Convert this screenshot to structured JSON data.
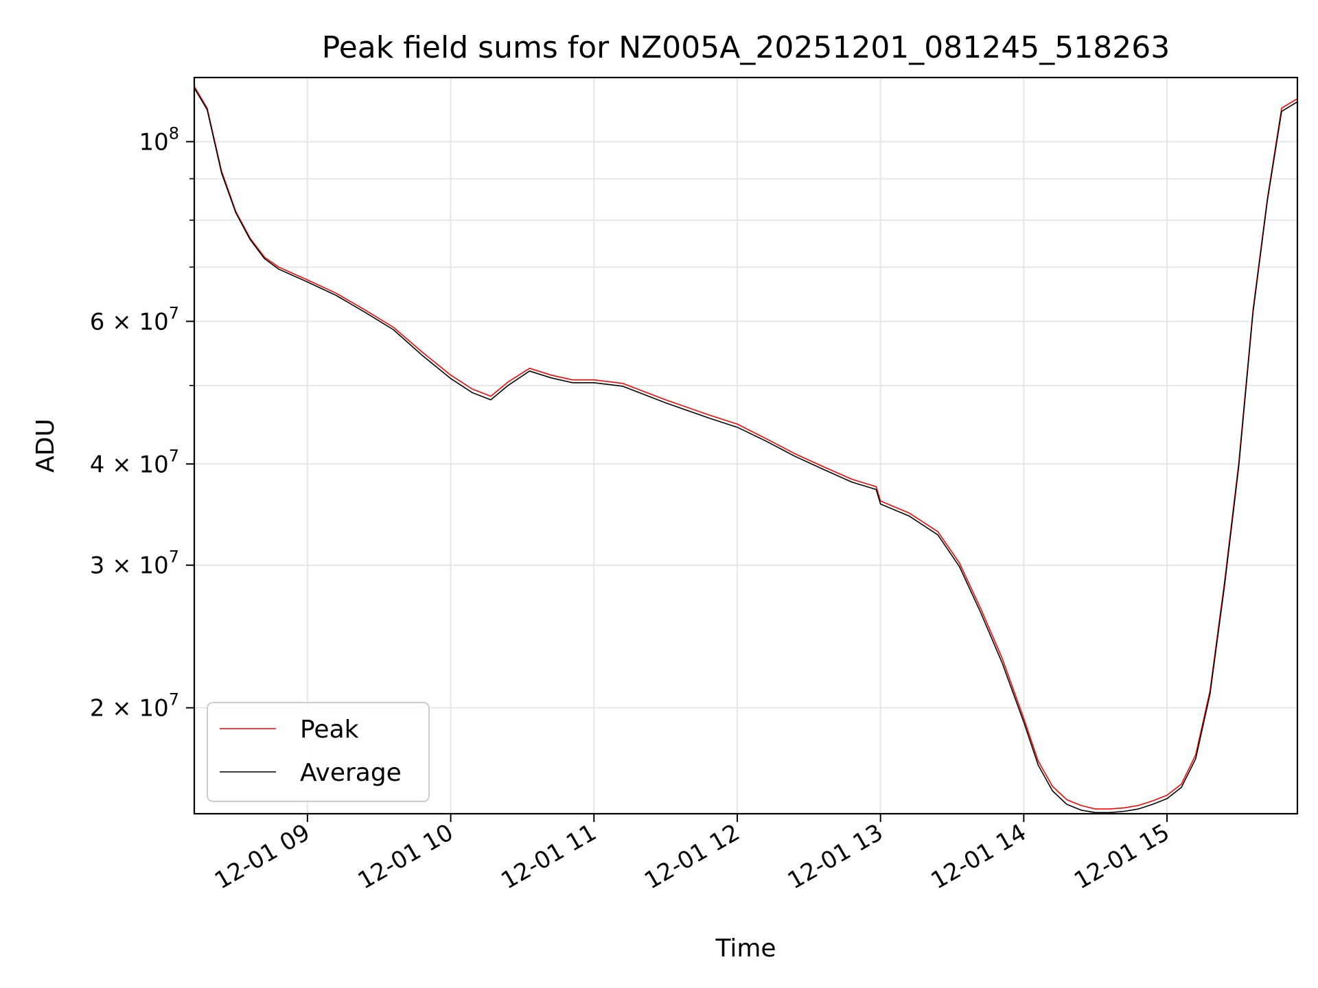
{
  "chart_data": {
    "type": "line",
    "title": "Peak field sums for NZ005A_20251201_081245_518263",
    "xlabel": "Time",
    "ylabel": "ADU",
    "yscale": "log",
    "xlim": [
      8.21,
      15.91
    ],
    "ylim": [
      14800000,
      120000000
    ],
    "grid": true,
    "legend_position": "lower-left",
    "x_ticks": [
      {
        "value": 9,
        "label": "12-01 09"
      },
      {
        "value": 10,
        "label": "12-01 10"
      },
      {
        "value": 11,
        "label": "12-01 11"
      },
      {
        "value": 12,
        "label": "12-01 12"
      },
      {
        "value": 13,
        "label": "12-01 13"
      },
      {
        "value": 14,
        "label": "12-01 14"
      },
      {
        "value": 15,
        "label": "12-01 15"
      }
    ],
    "y_ticks_major": [
      {
        "value": 20000000,
        "base": "2 × 10",
        "exp": "7"
      },
      {
        "value": 30000000,
        "base": "3 × 10",
        "exp": "7"
      },
      {
        "value": 40000000,
        "base": "4 × 10",
        "exp": "7"
      },
      {
        "value": 60000000,
        "base": "6 × 10",
        "exp": "7"
      },
      {
        "value": 100000000,
        "base": "10",
        "exp": "8"
      }
    ],
    "y_ticks_minor": [
      50000000,
      70000000,
      80000000,
      90000000
    ],
    "series": [
      {
        "name": "Peak",
        "color": "#ff0000",
        "x": [
          8.21,
          8.3,
          8.4,
          8.5,
          8.6,
          8.7,
          8.8,
          9.0,
          9.2,
          9.4,
          9.6,
          9.8,
          10.0,
          10.15,
          10.28,
          10.4,
          10.55,
          10.7,
          10.85,
          11.0,
          11.2,
          11.5,
          11.8,
          12.0,
          12.2,
          12.4,
          12.6,
          12.8,
          12.97,
          13.0,
          13.2,
          13.4,
          13.55,
          13.7,
          13.85,
          14.0,
          14.1,
          14.2,
          14.3,
          14.4,
          14.5,
          14.6,
          14.7,
          14.8,
          14.9,
          15.0,
          15.1,
          15.2,
          15.3,
          15.4,
          15.5,
          15.6,
          15.7,
          15.8,
          15.91
        ],
        "values": [
          117000000,
          110000000,
          92000000,
          82000000,
          76000000,
          72000000,
          70000000,
          67500000,
          65000000,
          62000000,
          59000000,
          55000000,
          51500000,
          49500000,
          48500000,
          50500000,
          52500000,
          51500000,
          50800000,
          50800000,
          50300000,
          48000000,
          46000000,
          44800000,
          43000000,
          41200000,
          39700000,
          38300000,
          37500000,
          36000000,
          34800000,
          33000000,
          30200000,
          26500000,
          23000000,
          19400000,
          17200000,
          16000000,
          15400000,
          15150000,
          15000000,
          15000000,
          15050000,
          15150000,
          15350000,
          15600000,
          16100000,
          17500000,
          21000000,
          28500000,
          40000000,
          62000000,
          85000000,
          110000000,
          113000000
        ]
      },
      {
        "name": "Average",
        "color": "#000000",
        "x": [
          8.21,
          8.3,
          8.4,
          8.5,
          8.6,
          8.7,
          8.8,
          9.0,
          9.2,
          9.4,
          9.6,
          9.8,
          10.0,
          10.15,
          10.28,
          10.4,
          10.55,
          10.7,
          10.85,
          11.0,
          11.2,
          11.5,
          11.8,
          12.0,
          12.2,
          12.4,
          12.6,
          12.8,
          12.97,
          13.0,
          13.2,
          13.4,
          13.55,
          13.7,
          13.85,
          14.0,
          14.1,
          14.2,
          14.3,
          14.4,
          14.5,
          14.6,
          14.7,
          14.8,
          14.9,
          15.0,
          15.1,
          15.2,
          15.3,
          15.4,
          15.5,
          15.6,
          15.7,
          15.8,
          15.91
        ],
        "values": [
          116500000,
          109500000,
          91500000,
          81700000,
          75700000,
          71700000,
          69600000,
          67100000,
          64600000,
          61600000,
          58600000,
          54500000,
          51000000,
          49000000,
          48000000,
          50000000,
          52100000,
          51100000,
          50400000,
          50400000,
          49900000,
          47600000,
          45600000,
          44400000,
          42700000,
          40900000,
          39400000,
          38000000,
          37200000,
          35700000,
          34500000,
          32700000,
          29900000,
          26200000,
          22700000,
          19200000,
          17000000,
          15800000,
          15200000,
          14950000,
          14850000,
          14850000,
          14900000,
          15000000,
          15200000,
          15450000,
          15950000,
          17300000,
          20800000,
          28200000,
          39600000,
          61500000,
          84500000,
          109000000,
          112000000
        ]
      }
    ]
  }
}
